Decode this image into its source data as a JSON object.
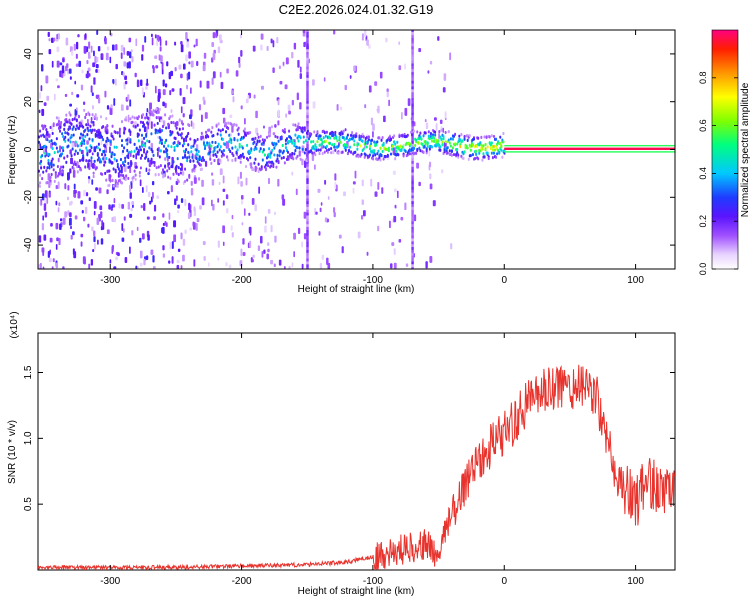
{
  "figure": {
    "title": "C2E2.2026.024.01.32.G19"
  },
  "chart_data": [
    {
      "type": "heatmap",
      "xlabel": "Height of straight line (km)",
      "ylabel": "Frequency (Hz)",
      "xlim": [
        -355,
        130
      ],
      "ylim": [
        -50,
        50
      ],
      "xticks": [
        -300,
        -200,
        -100,
        0,
        100
      ],
      "yticks": [
        -40,
        -20,
        0,
        20,
        40
      ],
      "colorbar": {
        "label": "Normalized spectral amplitude",
        "range": [
          0,
          1
        ],
        "ticks": [
          0.0,
          0.2,
          0.4,
          0.6,
          0.8
        ],
        "tick_labels": [
          "0.0",
          "0.2",
          "0.4",
          "0.6",
          "0.8"
        ]
      },
      "features": {
        "noise_band_x_range": [
          -355,
          -40
        ],
        "energy_ridge_x_range": [
          -240,
          130
        ],
        "spike_lines_x": [
          -70,
          -150
        ],
        "saturated_line_x_range": [
          0,
          130
        ]
      }
    },
    {
      "type": "line",
      "xlabel": "Height of straight line (km)",
      "ylabel": "SNR (10 * v/v)",
      "scale_label": "(x10⁴)",
      "xlim": [
        -355,
        130
      ],
      "ylim": [
        0,
        1.8
      ],
      "xticks": [
        -300,
        -200,
        -100,
        0,
        100
      ],
      "yticks": [
        0.5,
        1.0,
        1.5
      ],
      "ytick_labels": [
        "0.5",
        "1.0",
        "1.5"
      ],
      "series": [
        {
          "color": "#e8322c",
          "x": [
            -355,
            -300,
            -250,
            -200,
            -150,
            -120,
            -100,
            -80,
            -60,
            -50,
            -40,
            -30,
            -20,
            -10,
            0,
            10,
            20,
            30,
            40,
            50,
            60,
            70,
            80,
            90,
            100,
            110,
            120,
            130
          ],
          "y": [
            0.02,
            0.02,
            0.02,
            0.03,
            0.04,
            0.06,
            0.1,
            0.15,
            0.2,
            0.1,
            0.45,
            0.65,
            0.85,
            0.95,
            1.05,
            1.15,
            1.3,
            1.35,
            1.38,
            1.4,
            1.38,
            1.35,
            0.85,
            0.65,
            0.5,
            0.7,
            0.6,
            0.55
          ]
        }
      ]
    }
  ]
}
